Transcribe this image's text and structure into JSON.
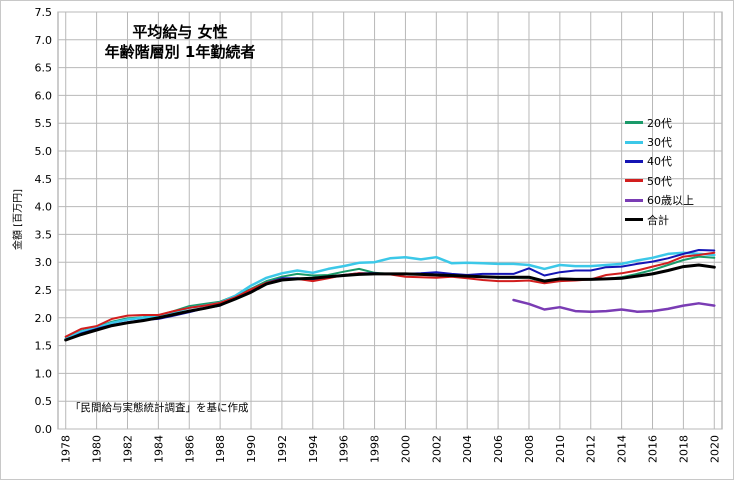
{
  "chart_data": {
    "type": "line",
    "title_lines": [
      "平均給与 女性",
      "年齢階層別 1年勤続者"
    ],
    "ylabel": "金額 [百万円]",
    "note": "「民間給与実態統計調査」を基に作成",
    "ylim": [
      0,
      7.5
    ],
    "ytick_step": 0.5,
    "x": [
      1978,
      1979,
      1980,
      1981,
      1982,
      1983,
      1984,
      1985,
      1986,
      1987,
      1988,
      1989,
      1990,
      1991,
      1992,
      1993,
      1994,
      1995,
      1996,
      1997,
      1998,
      1999,
      2000,
      2001,
      2002,
      2003,
      2004,
      2005,
      2006,
      2007,
      2008,
      2009,
      2010,
      2011,
      2012,
      2013,
      2014,
      2015,
      2016,
      2017,
      2018,
      2019,
      2020
    ],
    "xticks": [
      "1978",
      "1980",
      "1982",
      "1984",
      "1986",
      "1988",
      "1990",
      "1992",
      "1994",
      "1996",
      "1998",
      "2000",
      "2002",
      "2004",
      "2006",
      "2008",
      "2010",
      "2012",
      "2014",
      "2016",
      "2018",
      "2020"
    ],
    "grid": true,
    "legend_position": "right",
    "series": [
      {
        "name": "20代",
        "color": "#1a9a6a",
        "width": 2,
        "values": [
          1.63,
          1.76,
          1.83,
          1.93,
          1.99,
          2.01,
          2.04,
          2.12,
          2.21,
          2.25,
          2.29,
          2.4,
          2.52,
          2.66,
          2.74,
          2.79,
          2.76,
          2.77,
          2.83,
          2.88,
          2.81,
          2.79,
          2.79,
          2.79,
          2.77,
          2.76,
          2.75,
          2.74,
          2.72,
          2.72,
          2.72,
          2.64,
          2.68,
          2.69,
          2.69,
          2.7,
          2.73,
          2.79,
          2.86,
          2.95,
          3.04,
          3.1,
          3.08
        ]
      },
      {
        "name": "30代",
        "color": "#3cc8e8",
        "width": 2.5,
        "values": [
          1.62,
          1.75,
          1.82,
          1.91,
          1.97,
          2.0,
          2.03,
          2.1,
          2.18,
          2.22,
          2.27,
          2.4,
          2.58,
          2.72,
          2.8,
          2.85,
          2.81,
          2.88,
          2.93,
          2.99,
          3.0,
          3.07,
          3.09,
          3.05,
          3.09,
          2.98,
          2.99,
          2.98,
          2.97,
          2.97,
          2.95,
          2.88,
          2.95,
          2.93,
          2.93,
          2.95,
          2.97,
          3.03,
          3.08,
          3.15,
          3.17,
          3.15,
          3.13
        ]
      },
      {
        "name": "40代",
        "color": "#1414b4",
        "width": 2,
        "values": [
          1.6,
          1.72,
          1.8,
          1.87,
          1.92,
          1.96,
          1.98,
          2.04,
          2.1,
          2.17,
          2.22,
          2.36,
          2.48,
          2.63,
          2.71,
          2.71,
          2.68,
          2.73,
          2.77,
          2.8,
          2.8,
          2.79,
          2.79,
          2.8,
          2.82,
          2.79,
          2.77,
          2.79,
          2.79,
          2.79,
          2.89,
          2.76,
          2.82,
          2.85,
          2.85,
          2.91,
          2.92,
          2.97,
          3.01,
          3.07,
          3.15,
          3.22,
          3.21
        ]
      },
      {
        "name": "50代",
        "color": "#d21e1e",
        "width": 2,
        "values": [
          1.66,
          1.8,
          1.85,
          1.98,
          2.04,
          2.05,
          2.05,
          2.12,
          2.18,
          2.22,
          2.27,
          2.37,
          2.51,
          2.63,
          2.69,
          2.7,
          2.66,
          2.71,
          2.77,
          2.8,
          2.79,
          2.78,
          2.74,
          2.73,
          2.72,
          2.74,
          2.71,
          2.68,
          2.66,
          2.66,
          2.67,
          2.62,
          2.66,
          2.67,
          2.69,
          2.77,
          2.8,
          2.85,
          2.92,
          2.99,
          3.1,
          3.13,
          3.17
        ]
      },
      {
        "name": "60歳以上",
        "color": "#7a3cb4",
        "width": 2.5,
        "values": [
          null,
          null,
          null,
          null,
          null,
          null,
          null,
          null,
          null,
          null,
          null,
          null,
          null,
          null,
          null,
          null,
          null,
          null,
          null,
          null,
          null,
          null,
          null,
          null,
          null,
          null,
          null,
          null,
          null,
          2.32,
          2.25,
          2.15,
          2.19,
          2.12,
          2.11,
          2.12,
          2.15,
          2.11,
          2.12,
          2.16,
          2.22,
          2.26,
          2.22
        ]
      },
      {
        "name": "合計",
        "color": "#000000",
        "width": 3,
        "values": [
          1.6,
          1.7,
          1.78,
          1.86,
          1.91,
          1.95,
          2.0,
          2.06,
          2.12,
          2.17,
          2.23,
          2.34,
          2.46,
          2.61,
          2.68,
          2.7,
          2.71,
          2.74,
          2.76,
          2.78,
          2.79,
          2.79,
          2.79,
          2.78,
          2.77,
          2.76,
          2.75,
          2.74,
          2.73,
          2.73,
          2.73,
          2.66,
          2.7,
          2.69,
          2.69,
          2.7,
          2.71,
          2.75,
          2.79,
          2.85,
          2.92,
          2.95,
          2.91
        ]
      }
    ]
  }
}
